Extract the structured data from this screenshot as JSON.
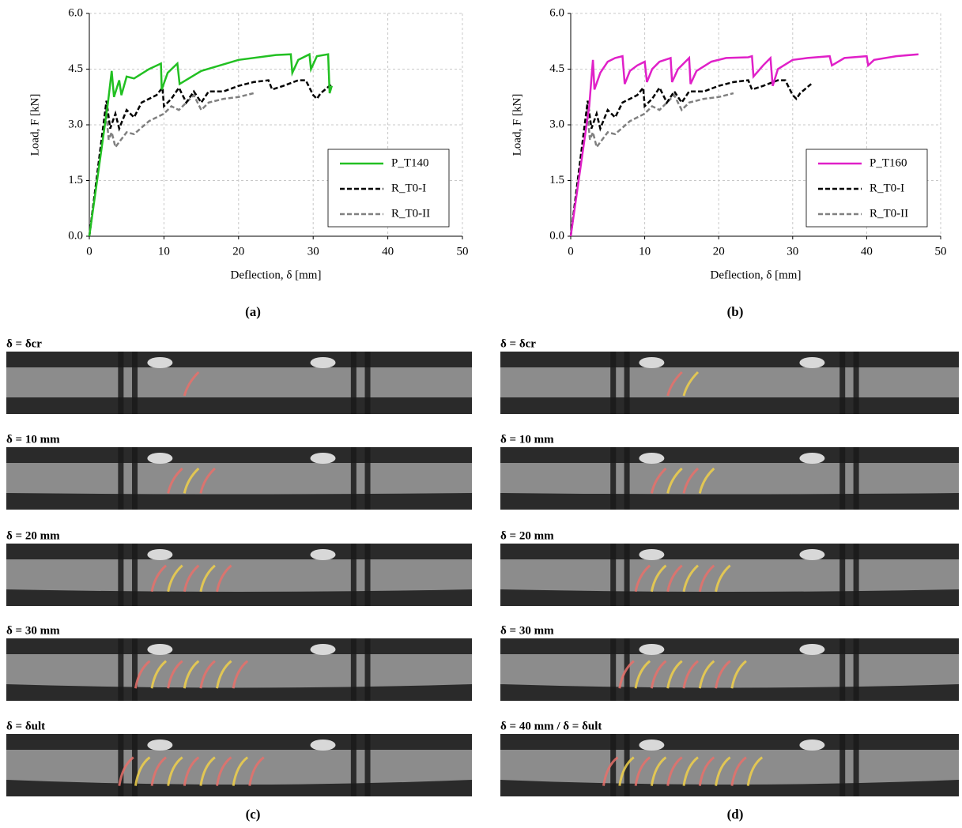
{
  "chart_data": [
    {
      "type": "line",
      "xlabel": "Deflection, δ [mm]",
      "ylabel": "Load, F [kN]",
      "xlim": [
        0,
        50
      ],
      "ylim": [
        0,
        6
      ],
      "xticks": [
        0,
        10,
        20,
        30,
        40,
        50
      ],
      "yticks": [
        {
          "value": 0,
          "label": "0.0"
        },
        1.5,
        {
          "value": 3,
          "label": "3.0"
        },
        4.5,
        {
          "value": 6,
          "label": "6.0"
        }
      ],
      "grid": true,
      "legend": "lower right",
      "series": [
        {
          "name": "P_T140",
          "color": "#22c022",
          "dashed": false,
          "x": [
            0,
            2.5,
            3,
            3.3,
            4,
            4.3,
            5,
            6,
            8,
            9.6,
            9.7,
            10.5,
            11.8,
            12.1,
            15,
            20,
            25,
            27,
            27.2,
            28,
            29.5,
            29.7,
            30.5,
            32,
            32.2,
            32.5
          ],
          "values": [
            0,
            3.6,
            4.45,
            3.75,
            4.2,
            3.8,
            4.3,
            4.25,
            4.5,
            4.65,
            3.95,
            4.4,
            4.65,
            4.1,
            4.45,
            4.75,
            4.88,
            4.9,
            4.4,
            4.75,
            4.9,
            4.5,
            4.85,
            4.9,
            3.85,
            4.05
          ]
        },
        {
          "name": "R_T0-I",
          "color": "#000000",
          "dashed": true,
          "x": [
            0,
            2.3,
            2.8,
            3.5,
            4,
            5,
            6,
            7,
            8,
            9,
            9.8,
            10,
            11,
            12,
            13,
            14,
            15,
            16,
            18,
            20,
            22,
            24,
            24.5,
            26,
            28,
            29,
            30,
            30.5,
            31,
            32.5
          ],
          "values": [
            0,
            3.65,
            2.9,
            3.3,
            2.9,
            3.4,
            3.2,
            3.6,
            3.7,
            3.8,
            4.0,
            3.5,
            3.7,
            4.0,
            3.6,
            3.9,
            3.6,
            3.9,
            3.9,
            4.05,
            4.15,
            4.2,
            3.95,
            4.05,
            4.2,
            4.2,
            3.8,
            3.7,
            3.85,
            4.1
          ]
        },
        {
          "name": "R_T0-II",
          "color": "#808080",
          "dashed": true,
          "x": [
            0,
            2.2,
            2.6,
            3,
            3.5,
            5,
            6,
            8,
            10,
            11,
            12,
            13,
            14,
            15,
            16,
            18,
            20,
            21,
            22
          ],
          "values": [
            0,
            3.45,
            2.6,
            2.8,
            2.4,
            2.8,
            2.75,
            3.1,
            3.3,
            3.5,
            3.4,
            3.6,
            3.8,
            3.4,
            3.6,
            3.7,
            3.75,
            3.8,
            3.85
          ]
        }
      ]
    },
    {
      "type": "line",
      "xlabel": "Deflection, δ [mm]",
      "ylabel": "Load, F [kN]",
      "xlim": [
        0,
        50
      ],
      "ylim": [
        0,
        6
      ],
      "xticks": [
        0,
        10,
        20,
        30,
        40,
        50
      ],
      "yticks": [
        {
          "value": 0,
          "label": "0.0"
        },
        1.5,
        {
          "value": 3,
          "label": "3.0"
        },
        4.5,
        {
          "value": 6,
          "label": "6.0"
        }
      ],
      "grid": true,
      "legend": "lower right",
      "series": [
        {
          "name": "P_T160",
          "color": "#e020c8",
          "dashed": false,
          "x": [
            0,
            2.5,
            3,
            3.2,
            4,
            5,
            6,
            7,
            7.3,
            8,
            9,
            10,
            10.3,
            11,
            12,
            13.5,
            13.7,
            14.5,
            16,
            16.2,
            17,
            19,
            21,
            24,
            24.5,
            24.7,
            26,
            27,
            27.3,
            28,
            30,
            32,
            35,
            35.3,
            37,
            40,
            40.2,
            41,
            44,
            47
          ],
          "values": [
            0,
            3.5,
            4.75,
            3.95,
            4.4,
            4.7,
            4.8,
            4.85,
            4.1,
            4.45,
            4.6,
            4.7,
            4.15,
            4.5,
            4.7,
            4.8,
            4.15,
            4.5,
            4.8,
            4.1,
            4.45,
            4.7,
            4.8,
            4.82,
            4.85,
            4.3,
            4.6,
            4.8,
            4.05,
            4.5,
            4.75,
            4.8,
            4.85,
            4.6,
            4.8,
            4.85,
            4.6,
            4.75,
            4.85,
            4.9
          ]
        },
        {
          "name": "R_T0-I",
          "color": "#000000",
          "dashed": true,
          "x": [
            0,
            2.3,
            2.8,
            3.5,
            4,
            5,
            6,
            7,
            8,
            9,
            9.8,
            10,
            11,
            12,
            13,
            14,
            15,
            16,
            18,
            20,
            22,
            24,
            24.5,
            26,
            28,
            29,
            30,
            30.5,
            31,
            32.5
          ],
          "values": [
            0,
            3.65,
            2.9,
            3.3,
            2.9,
            3.4,
            3.2,
            3.6,
            3.7,
            3.8,
            4.0,
            3.5,
            3.7,
            4.0,
            3.6,
            3.9,
            3.6,
            3.9,
            3.9,
            4.05,
            4.15,
            4.2,
            3.95,
            4.05,
            4.2,
            4.2,
            3.8,
            3.7,
            3.85,
            4.1
          ]
        },
        {
          "name": "R_T0-II",
          "color": "#808080",
          "dashed": true,
          "x": [
            0,
            2.2,
            2.6,
            3,
            3.5,
            5,
            6,
            8,
            10,
            11,
            12,
            13,
            14,
            15,
            16,
            18,
            20,
            21,
            22
          ],
          "values": [
            0,
            3.45,
            2.6,
            2.8,
            2.4,
            2.8,
            2.75,
            3.1,
            3.3,
            3.5,
            3.4,
            3.6,
            3.8,
            3.4,
            3.6,
            3.7,
            3.75,
            3.8,
            3.85
          ]
        }
      ]
    }
  ],
  "panel_labels": [
    "(a)",
    "(b)",
    "(c)",
    "(d)"
  ],
  "photos": [
    [
      "δ = δcr",
      "δ = 10 mm",
      "δ = 20 mm",
      "δ = 30 mm",
      "δ = δult"
    ],
    [
      "δ = δcr",
      "δ = 10 mm",
      "δ = 20 mm",
      "δ = 30 mm",
      "δ = 40 mm / δ = δult"
    ]
  ]
}
